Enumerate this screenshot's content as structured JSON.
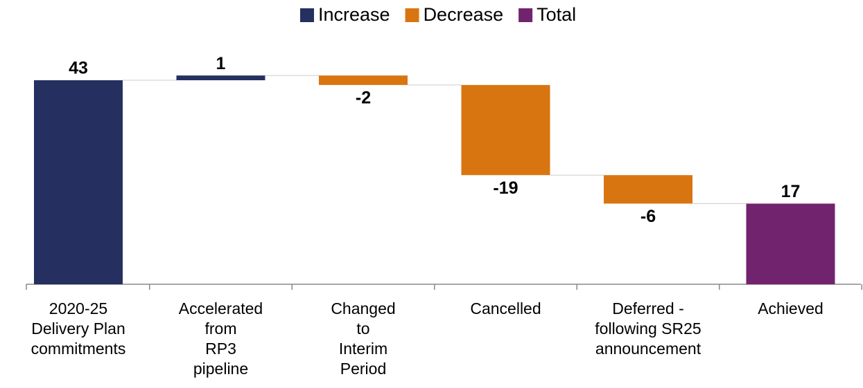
{
  "chart_data": {
    "type": "waterfall",
    "categories": [
      "2020-25\nDelivery Plan\ncommitments",
      "Accelerated\nfrom\nRP3\npipeline",
      "Changed\nto\nInterim\nPeriod",
      "Cancelled",
      "Deferred -\nfollowing SR25\nannouncement",
      "Achieved"
    ],
    "series": [
      {
        "name": "Increase",
        "color": "#253060",
        "values": [
          43,
          1,
          null,
          null,
          null,
          null
        ]
      },
      {
        "name": "Decrease",
        "color": "#d97511",
        "values": [
          null,
          null,
          -2,
          -19,
          -6,
          null
        ]
      },
      {
        "name": "Total",
        "color": "#72236e",
        "values": [
          null,
          null,
          null,
          null,
          null,
          17
        ]
      }
    ],
    "ylim": [
      0,
      50
    ],
    "legend": "top"
  }
}
